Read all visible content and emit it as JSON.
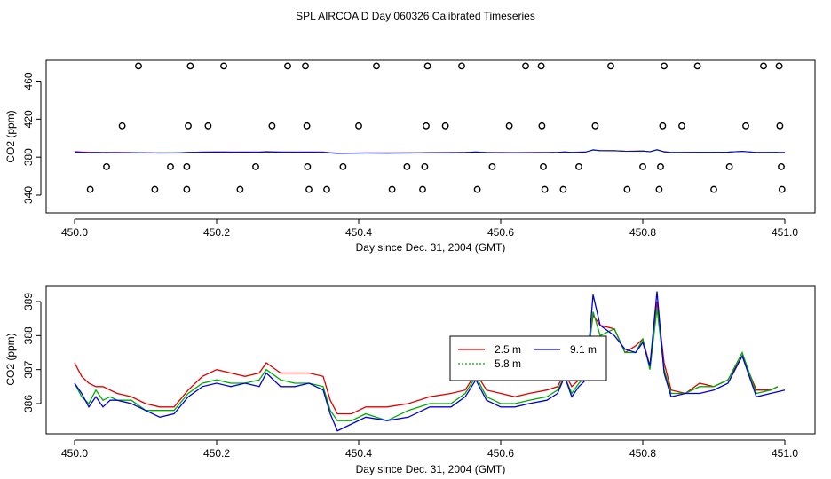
{
  "page_title": "SPL AIRCOA D  Day 060326  Calibrated Timeseries",
  "chart_data": [
    {
      "type": "scatter+line",
      "title": "SPL AIRCOA D  Day 060326  Calibrated Timeseries",
      "xlabel": "Day since Dec. 31, 2004 (GMT)",
      "ylabel": "CO2 (ppm)",
      "xlim": [
        450.0,
        451.0
      ],
      "ylim": [
        332,
        482
      ],
      "xticks": [
        450.0,
        450.2,
        450.4,
        450.6,
        450.8,
        451.0
      ],
      "xtick_labels": [
        "450.0",
        "450.2",
        "450.4",
        "450.6",
        "450.8",
        "451.0"
      ],
      "yticks": [
        340,
        380,
        420,
        460
      ],
      "ytick_labels": [
        "340",
        "380",
        "420",
        "460"
      ],
      "points": [
        {
          "x": 450.09,
          "y": 476
        },
        {
          "x": 450.163,
          "y": 476
        },
        {
          "x": 450.21,
          "y": 476
        },
        {
          "x": 450.3,
          "y": 476
        },
        {
          "x": 450.325,
          "y": 476
        },
        {
          "x": 450.425,
          "y": 476
        },
        {
          "x": 450.497,
          "y": 476
        },
        {
          "x": 450.545,
          "y": 476
        },
        {
          "x": 450.635,
          "y": 476
        },
        {
          "x": 450.657,
          "y": 476
        },
        {
          "x": 450.755,
          "y": 476
        },
        {
          "x": 450.83,
          "y": 476
        },
        {
          "x": 450.877,
          "y": 476
        },
        {
          "x": 450.97,
          "y": 476
        },
        {
          "x": 450.992,
          "y": 476
        },
        {
          "x": 450.067,
          "y": 413
        },
        {
          "x": 450.16,
          "y": 413
        },
        {
          "x": 450.188,
          "y": 413
        },
        {
          "x": 450.278,
          "y": 413
        },
        {
          "x": 450.327,
          "y": 413
        },
        {
          "x": 450.4,
          "y": 413
        },
        {
          "x": 450.495,
          "y": 413
        },
        {
          "x": 450.522,
          "y": 413
        },
        {
          "x": 450.612,
          "y": 413
        },
        {
          "x": 450.658,
          "y": 413
        },
        {
          "x": 450.733,
          "y": 413
        },
        {
          "x": 450.828,
          "y": 413
        },
        {
          "x": 450.855,
          "y": 413
        },
        {
          "x": 450.945,
          "y": 413
        },
        {
          "x": 450.993,
          "y": 413
        },
        {
          "x": 450.045,
          "y": 370
        },
        {
          "x": 450.135,
          "y": 370
        },
        {
          "x": 450.158,
          "y": 370
        },
        {
          "x": 450.255,
          "y": 370
        },
        {
          "x": 450.328,
          "y": 370
        },
        {
          "x": 450.378,
          "y": 370
        },
        {
          "x": 450.468,
          "y": 370
        },
        {
          "x": 450.493,
          "y": 370
        },
        {
          "x": 450.588,
          "y": 370
        },
        {
          "x": 450.66,
          "y": 370
        },
        {
          "x": 450.71,
          "y": 370
        },
        {
          "x": 450.8,
          "y": 370
        },
        {
          "x": 450.825,
          "y": 370
        },
        {
          "x": 450.922,
          "y": 370
        },
        {
          "x": 450.995,
          "y": 370
        },
        {
          "x": 450.022,
          "y": 346
        },
        {
          "x": 450.113,
          "y": 346
        },
        {
          "x": 450.158,
          "y": 346
        },
        {
          "x": 450.233,
          "y": 346
        },
        {
          "x": 450.33,
          "y": 346
        },
        {
          "x": 450.355,
          "y": 346
        },
        {
          "x": 450.447,
          "y": 346
        },
        {
          "x": 450.49,
          "y": 346
        },
        {
          "x": 450.567,
          "y": 346
        },
        {
          "x": 450.662,
          "y": 346
        },
        {
          "x": 450.688,
          "y": 346
        },
        {
          "x": 450.778,
          "y": 346
        },
        {
          "x": 450.823,
          "y": 346
        },
        {
          "x": 450.9,
          "y": 346
        },
        {
          "x": 450.996,
          "y": 346
        }
      ],
      "series": [
        {
          "name": "2.5 m",
          "color": "#e00000",
          "x": [
            450.0,
            450.01,
            450.02,
            450.03,
            450.04,
            450.05,
            450.06,
            450.08,
            450.1,
            450.12,
            450.14,
            450.16,
            450.18,
            450.2,
            450.22,
            450.24,
            450.26,
            450.27,
            450.29,
            450.31,
            450.33,
            450.35,
            450.36,
            450.37,
            450.39,
            450.41,
            450.44,
            450.47,
            450.5,
            450.53,
            450.55,
            450.565,
            450.58,
            450.6,
            450.62,
            450.64,
            450.665,
            450.68,
            450.69,
            450.7,
            450.71,
            450.72,
            450.73,
            450.74,
            450.76,
            450.775,
            450.79,
            450.8,
            450.81,
            450.82,
            450.83,
            450.84,
            450.86,
            450.88,
            450.9,
            450.92,
            450.94,
            450.96,
            450.98,
            450.99
          ],
          "y": [
            387.2,
            386.8,
            386.6,
            386.5,
            386.5,
            386.4,
            386.3,
            386.2,
            386.0,
            385.9,
            385.9,
            386.4,
            386.8,
            387.0,
            386.9,
            386.8,
            386.9,
            387.2,
            386.9,
            386.9,
            386.9,
            386.8,
            386.1,
            385.7,
            385.7,
            385.9,
            385.9,
            386.0,
            386.2,
            386.3,
            386.4,
            386.9,
            386.4,
            386.3,
            386.2,
            386.3,
            386.4,
            386.5,
            386.9,
            386.5,
            386.7,
            387.0,
            388.6,
            388.3,
            388.2,
            387.5,
            387.7,
            387.9,
            387.1,
            389.0,
            387.2,
            386.4,
            386.3,
            386.6,
            386.5,
            386.7,
            387.4,
            386.4,
            386.4,
            386.5
          ]
        },
        {
          "name": "5.8 m",
          "color": "#00aa00",
          "x": [
            450.0,
            450.01,
            450.02,
            450.03,
            450.04,
            450.05,
            450.06,
            450.08,
            450.1,
            450.12,
            450.14,
            450.16,
            450.18,
            450.2,
            450.22,
            450.24,
            450.26,
            450.27,
            450.29,
            450.31,
            450.33,
            450.35,
            450.36,
            450.37,
            450.39,
            450.41,
            450.44,
            450.47,
            450.5,
            450.53,
            450.55,
            450.565,
            450.58,
            450.6,
            450.62,
            450.64,
            450.665,
            450.68,
            450.69,
            450.7,
            450.71,
            450.72,
            450.73,
            450.74,
            450.76,
            450.775,
            450.79,
            450.8,
            450.81,
            450.82,
            450.83,
            450.84,
            450.86,
            450.88,
            450.9,
            450.92,
            450.94,
            450.96,
            450.98,
            450.99
          ],
          "y": [
            386.6,
            386.2,
            386.0,
            386.4,
            386.1,
            386.2,
            386.1,
            386.1,
            385.8,
            385.8,
            385.8,
            386.3,
            386.6,
            386.7,
            386.6,
            386.6,
            386.7,
            387.0,
            386.7,
            386.6,
            386.6,
            386.5,
            385.8,
            385.5,
            385.5,
            385.7,
            385.5,
            385.8,
            386.0,
            386.0,
            386.3,
            386.8,
            386.2,
            386.0,
            386.0,
            386.1,
            386.2,
            386.4,
            386.8,
            386.3,
            386.6,
            386.8,
            388.7,
            388.0,
            388.2,
            387.5,
            387.5,
            387.9,
            387.0,
            388.8,
            387.0,
            386.3,
            386.3,
            386.5,
            386.5,
            386.7,
            387.5,
            386.3,
            386.4,
            386.5
          ]
        },
        {
          "name": "9.1 m",
          "color": "#0000dd",
          "x": [
            450.0,
            450.01,
            450.02,
            450.03,
            450.04,
            450.05,
            450.06,
            450.08,
            450.1,
            450.12,
            450.14,
            450.16,
            450.18,
            450.2,
            450.22,
            450.24,
            450.26,
            450.27,
            450.29,
            450.31,
            450.33,
            450.35,
            450.36,
            450.37,
            450.39,
            450.41,
            450.44,
            450.47,
            450.5,
            450.53,
            450.55,
            450.565,
            450.58,
            450.6,
            450.62,
            450.64,
            450.665,
            450.68,
            450.69,
            450.7,
            450.71,
            450.72,
            450.73,
            450.74,
            450.76,
            450.775,
            450.79,
            450.8,
            450.81,
            450.82,
            450.83,
            450.84,
            450.86,
            450.88,
            450.9,
            450.92,
            450.94,
            450.96,
            450.98,
            451.0
          ],
          "y": [
            386.6,
            386.3,
            385.9,
            386.2,
            385.9,
            386.1,
            386.1,
            386.0,
            385.8,
            385.6,
            385.7,
            386.2,
            386.5,
            386.6,
            386.5,
            386.6,
            386.5,
            386.9,
            386.5,
            386.5,
            386.6,
            386.4,
            385.7,
            385.2,
            385.4,
            385.6,
            385.5,
            385.6,
            385.9,
            385.9,
            386.2,
            386.7,
            386.1,
            385.9,
            385.9,
            386.0,
            386.1,
            386.3,
            386.8,
            386.2,
            386.5,
            386.7,
            389.2,
            388.3,
            388.0,
            387.6,
            387.5,
            387.8,
            387.1,
            389.3,
            386.9,
            386.2,
            386.3,
            386.3,
            386.4,
            386.6,
            387.4,
            386.2,
            386.3,
            386.4
          ]
        }
      ],
      "legend": [
        "2.5 m",
        "5.8 m",
        "9.1 m"
      ]
    },
    {
      "type": "line",
      "xlabel": "Day since Dec. 31, 2004 (GMT)",
      "ylabel": "CO2 (ppm)",
      "xlim": [
        450.0,
        451.0
      ],
      "ylim": [
        385.0,
        389.5
      ],
      "xticks": [
        450.0,
        450.2,
        450.4,
        450.6,
        450.8,
        451.0
      ],
      "xtick_labels": [
        "450.0",
        "450.2",
        "450.4",
        "450.6",
        "450.8",
        "451.0"
      ],
      "yticks": [
        386,
        387,
        388,
        389
      ],
      "ytick_labels": [
        "386",
        "387",
        "388",
        "389"
      ],
      "legend_position": "center-right",
      "legend_entries": [
        {
          "label": "2.5 m",
          "color": "#e00000"
        },
        {
          "label": "5.8 m",
          "color": "#00aa00"
        },
        {
          "label": "9.1 m",
          "color": "#0000dd"
        }
      ]
    }
  ]
}
